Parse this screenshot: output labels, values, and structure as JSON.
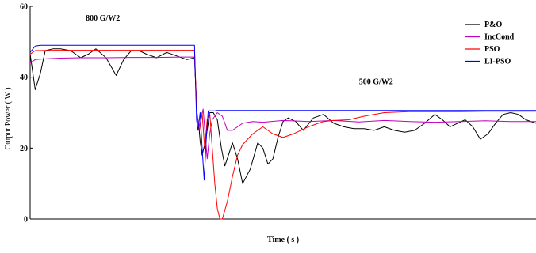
{
  "chart_data": {
    "type": "line",
    "title": "",
    "xlabel": "Time ( s )",
    "ylabel": "Output Power ( W )",
    "xlim": [
      0,
      1
    ],
    "ylim": [
      0,
      60
    ],
    "yticks": [
      0,
      20,
      40,
      60
    ],
    "grid": false,
    "legend_position": "top-right",
    "annotations": [
      {
        "text": "800 G/W2",
        "x": 0.11,
        "y": 56
      },
      {
        "text": "500 G/W2",
        "x": 0.65,
        "y": 38
      }
    ],
    "series": [
      {
        "name": "P&O",
        "color": "#000000",
        "x": [
          0.0,
          0.01,
          0.02,
          0.03,
          0.045,
          0.06,
          0.08,
          0.1,
          0.115,
          0.13,
          0.15,
          0.17,
          0.185,
          0.2,
          0.215,
          0.23,
          0.25,
          0.27,
          0.29,
          0.31,
          0.325,
          0.33,
          0.333,
          0.336,
          0.34,
          0.345,
          0.35,
          0.355,
          0.362,
          0.37,
          0.378,
          0.385,
          0.392,
          0.4,
          0.41,
          0.42,
          0.435,
          0.45,
          0.46,
          0.47,
          0.48,
          0.49,
          0.5,
          0.51,
          0.525,
          0.54,
          0.56,
          0.58,
          0.6,
          0.62,
          0.64,
          0.66,
          0.68,
          0.7,
          0.72,
          0.74,
          0.76,
          0.78,
          0.8,
          0.815,
          0.83,
          0.845,
          0.86,
          0.875,
          0.89,
          0.905,
          0.92,
          0.935,
          0.95,
          0.965,
          0.98,
          1.0
        ],
        "y": [
          46.5,
          36.5,
          41,
          47.5,
          48,
          48,
          47.5,
          45.5,
          46.5,
          48,
          45.5,
          40.5,
          45,
          47.5,
          47.5,
          46.5,
          45.5,
          47,
          46,
          45,
          45.5,
          29,
          27,
          22,
          18,
          21,
          25,
          30,
          30,
          28,
          20,
          15,
          18,
          21.5,
          17,
          10,
          14,
          21.5,
          20,
          15.5,
          17,
          23,
          27.5,
          28.5,
          27.5,
          25,
          28.5,
          29.5,
          27,
          26,
          25.5,
          25.5,
          25,
          26,
          25,
          24.5,
          25,
          27,
          29.5,
          28,
          26,
          27,
          28,
          26,
          22.5,
          24,
          27,
          29.5,
          30,
          29.5,
          28,
          27
        ]
      },
      {
        "name": "IncCond",
        "color": "#c000c0",
        "x": [
          0.0,
          0.01,
          0.03,
          0.06,
          0.1,
          0.15,
          0.2,
          0.25,
          0.3,
          0.325,
          0.33,
          0.334,
          0.338,
          0.342,
          0.346,
          0.35,
          0.355,
          0.36,
          0.37,
          0.38,
          0.39,
          0.4,
          0.42,
          0.44,
          0.46,
          0.5,
          0.55,
          0.6,
          0.65,
          0.7,
          0.75,
          0.8,
          0.85,
          0.9,
          0.95,
          1.0
        ],
        "y": [
          44,
          45,
          45.2,
          45.4,
          45.5,
          45.5,
          45.6,
          45.6,
          45.7,
          45.7,
          30,
          26,
          28,
          31,
          24,
          17,
          24,
          28,
          30,
          29,
          25,
          25,
          27,
          27.5,
          27.3,
          27.8,
          27.5,
          27.8,
          27.4,
          27.8,
          27.5,
          27.3,
          27.5,
          27.7,
          27.5,
          27.5
        ]
      },
      {
        "name": "PSO",
        "color": "#ff0000",
        "x": [
          0.0,
          0.01,
          0.05,
          0.1,
          0.2,
          0.3,
          0.325,
          0.33,
          0.335,
          0.34,
          0.345,
          0.35,
          0.355,
          0.36,
          0.365,
          0.37,
          0.375,
          0.38,
          0.39,
          0.4,
          0.41,
          0.42,
          0.44,
          0.46,
          0.48,
          0.5,
          0.52,
          0.55,
          0.58,
          0.6,
          0.63,
          0.66,
          0.7,
          0.75,
          0.8,
          0.85,
          0.9,
          0.95,
          1.0
        ],
        "y": [
          46.5,
          47.5,
          47.6,
          47.6,
          47.6,
          47.6,
          47.6,
          28,
          25,
          30,
          20,
          28,
          30,
          20,
          10,
          3,
          0,
          0,
          5,
          12,
          18,
          21,
          24,
          26,
          24,
          23,
          24,
          26,
          27.5,
          27.8,
          28,
          29,
          30,
          30.3,
          30.3,
          30.3,
          30.4,
          30.4,
          30.4
        ]
      },
      {
        "name": "LI-PSO",
        "color": "#0000ff",
        "x": [
          0.0,
          0.01,
          0.02,
          0.1,
          0.2,
          0.3,
          0.325,
          0.329,
          0.332,
          0.336,
          0.34,
          0.344,
          0.348,
          0.352,
          0.356,
          0.36,
          0.365,
          0.37,
          0.38,
          0.4,
          0.5,
          0.6,
          0.7,
          0.8,
          0.9,
          1.0
        ],
        "y": [
          47,
          48.8,
          49,
          49,
          49,
          49,
          49,
          28,
          25,
          30,
          20,
          11,
          22,
          30.5,
          30.5,
          30.5,
          30.5,
          30.6,
          30.6,
          30.6,
          30.6,
          30.6,
          30.6,
          30.6,
          30.6,
          30.6
        ]
      }
    ]
  }
}
